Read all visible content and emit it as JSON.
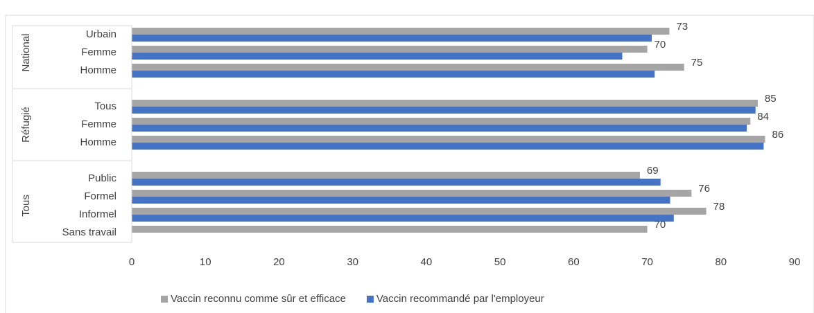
{
  "chart_data": {
    "type": "bar",
    "orientation": "horizontal",
    "groups": [
      {
        "name": "National",
        "categories": [
          "Urbain",
          "Femme",
          "Homme"
        ]
      },
      {
        "name": "Réfugié",
        "categories": [
          "Tous",
          "Femme",
          "Homme"
        ]
      },
      {
        "name": "Tous",
        "categories": [
          "Public",
          "Formel",
          "Informel",
          "Sans travail"
        ]
      }
    ],
    "series": [
      {
        "name": "Vaccin reconnu comme sûr et efficace",
        "color": "#a5a5a5",
        "values": [
          73,
          70,
          75,
          85,
          84,
          86,
          69,
          76,
          78,
          70
        ],
        "data_labels": true
      },
      {
        "name": "Vaccin recommandé par l'employeur",
        "color": "#4472c4",
        "values": [
          70.6,
          66.6,
          71,
          84.7,
          83.5,
          85.8,
          71.8,
          73.1,
          73.6,
          null
        ],
        "data_labels": false
      }
    ],
    "xlim": [
      0,
      90
    ],
    "xticks": [
      0,
      10,
      20,
      30,
      40,
      50,
      60,
      70,
      80,
      90
    ],
    "legend": "bottom"
  }
}
